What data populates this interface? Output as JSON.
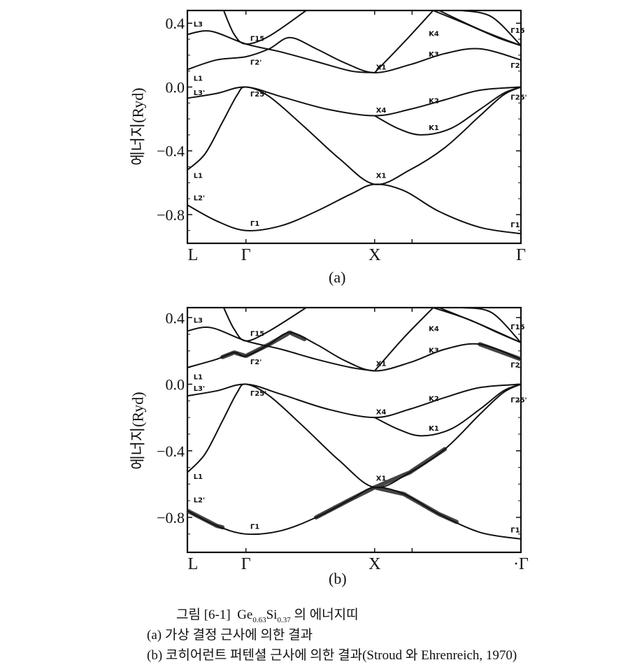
{
  "chart_data": [
    {
      "type": "line",
      "title": "(a)",
      "ylabel": "에너지(Ryd)",
      "ylim": [
        -0.98,
        0.48
      ],
      "xlim": [
        0,
        5.7
      ],
      "x_ticks": [
        {
          "k": 0,
          "label": "L"
        },
        {
          "k": 1,
          "label": "Γ"
        },
        {
          "k": 3.2,
          "label": "X"
        },
        {
          "k": 5.7,
          "label": "Γ"
        }
      ],
      "minor_x_ticks": [
        1,
        3.2,
        3.84
      ],
      "y_ticks": [
        {
          "v": 0.4,
          "label": "0.4"
        },
        {
          "v": 0.0,
          "label": "0.0"
        },
        {
          "v": -0.4,
          "label": "−0.4"
        },
        {
          "v": -0.8,
          "label": "−0.8"
        }
      ],
      "series": [
        {
          "name": "band-1",
          "k": [
            0,
            0.5,
            1,
            1.6,
            2.2,
            2.8,
            3.2,
            3.7,
            4.3,
            5.0,
            5.7
          ],
          "E": [
            -0.74,
            -0.84,
            -0.9,
            -0.87,
            -0.78,
            -0.67,
            -0.61,
            -0.65,
            -0.78,
            -0.88,
            -0.92
          ]
        },
        {
          "name": "band-2",
          "k": [
            0,
            0.3,
            0.6,
            0.85,
            1,
            1.4,
            2.0,
            2.6,
            3.2,
            3.8,
            4.4,
            5.0,
            5.4,
            5.7
          ],
          "E": [
            -0.52,
            -0.42,
            -0.22,
            -0.05,
            0.0,
            -0.06,
            -0.25,
            -0.45,
            -0.61,
            -0.52,
            -0.38,
            -0.18,
            -0.05,
            0.0
          ]
        },
        {
          "name": "band-3",
          "k": [
            0,
            0.5,
            1,
            1.6,
            2.4,
            3.2,
            3.8,
            4.4,
            5.0,
            5.7
          ],
          "E": [
            -0.07,
            -0.04,
            0.0,
            -0.06,
            -0.14,
            -0.18,
            -0.14,
            -0.08,
            -0.02,
            0.0
          ]
        },
        {
          "name": "band-3b",
          "k": [
            3.2,
            3.6,
            4.0,
            4.5,
            5.0,
            5.4,
            5.7
          ],
          "E": [
            -0.18,
            -0.26,
            -0.3,
            -0.26,
            -0.14,
            -0.04,
            0.0
          ]
        },
        {
          "name": "band-4",
          "k": [
            0,
            0.5,
            1,
            1.4,
            1.75,
            2.2,
            2.7,
            3.2,
            3.8,
            4.4,
            5.0,
            5.7
          ],
          "E": [
            0.11,
            0.17,
            0.19,
            0.24,
            0.31,
            0.24,
            0.15,
            0.09,
            0.14,
            0.21,
            0.24,
            0.17
          ]
        },
        {
          "name": "band-5",
          "k": [
            0,
            0.4,
            1,
            1.6,
            2.2,
            2.8,
            3.2
          ],
          "E": [
            0.33,
            0.35,
            0.27,
            0.22,
            0.16,
            0.1,
            0.09
          ]
        },
        {
          "name": "band-5b",
          "k": [
            3.2,
            3.7,
            4.2
          ],
          "E": [
            0.09,
            0.28,
            0.48
          ]
        },
        {
          "name": "band-6",
          "k": [
            0.62,
            0.8,
            1,
            1.4,
            2.03
          ],
          "E": [
            0.48,
            0.33,
            0.27,
            0.32,
            0.48
          ]
        },
        {
          "name": "band-7",
          "k": [
            4.2,
            4.8,
            5.3,
            5.7
          ],
          "E": [
            0.48,
            0.39,
            0.31,
            0.26
          ]
        },
        {
          "name": "band-8",
          "k": [
            4.3,
            5.0,
            5.7
          ],
          "E": [
            0.48,
            0.36,
            0.26
          ]
        },
        {
          "name": "band-9",
          "k": [
            4.7,
            5.2,
            5.7
          ],
          "E": [
            0.48,
            0.44,
            0.26
          ]
        }
      ],
      "broadened": [],
      "annotations": [
        {
          "text": "L3",
          "k": 0.08,
          "E": 0.38
        },
        {
          "text": "Γ15",
          "k": 1.05,
          "E": 0.29
        },
        {
          "text": "Γ2'",
          "k": 1.05,
          "E": 0.14
        },
        {
          "text": "L1",
          "k": 0.08,
          "E": 0.04
        },
        {
          "text": "L3'",
          "k": 0.08,
          "E": -0.05
        },
        {
          "text": "Γ25'",
          "k": 1.05,
          "E": -0.06
        },
        {
          "text": "L1",
          "k": 0.08,
          "E": -0.57
        },
        {
          "text": "L2'",
          "k": 0.08,
          "E": -0.71
        },
        {
          "text": "Γ1",
          "k": 1.05,
          "E": -0.87
        },
        {
          "text": "X1",
          "k": 3.2,
          "E": 0.11
        },
        {
          "text": "X4",
          "k": 3.2,
          "E": -0.16
        },
        {
          "text": "X1",
          "k": 3.2,
          "E": -0.57
        },
        {
          "text": "K4",
          "k": 4.1,
          "E": 0.32
        },
        {
          "text": "K3",
          "k": 4.1,
          "E": 0.19
        },
        {
          "text": "K2",
          "k": 4.1,
          "E": -0.1
        },
        {
          "text": "K1",
          "k": 4.1,
          "E": -0.27
        },
        {
          "text": "Γ15",
          "k": 5.5,
          "E": 0.34
        },
        {
          "text": "Γ2",
          "k": 5.5,
          "E": 0.12
        },
        {
          "text": "Γ25'",
          "k": 5.5,
          "E": -0.08
        },
        {
          "text": "Γ1",
          "k": 5.5,
          "E": -0.88
        }
      ]
    },
    {
      "type": "line",
      "title": "(b)",
      "ylabel": "에너지(Ryd)",
      "ylim": [
        -1.01,
        0.46
      ],
      "xlim": [
        0,
        5.7
      ],
      "x_ticks": [
        {
          "k": 0,
          "label": "L"
        },
        {
          "k": 1,
          "label": "Γ"
        },
        {
          "k": 3.2,
          "label": "X"
        },
        {
          "k": 5.7,
          "label": "·Γ"
        }
      ],
      "minor_x_ticks": [
        1,
        3.2,
        3.84
      ],
      "y_ticks": [
        {
          "v": 0.4,
          "label": "0.4"
        },
        {
          "v": 0.0,
          "label": "0.0"
        },
        {
          "v": -0.4,
          "label": "−0.4"
        },
        {
          "v": -0.8,
          "label": "−0.8"
        }
      ],
      "series": [
        {
          "name": "band-1",
          "k": [
            0,
            0.5,
            1,
            1.6,
            2.2,
            2.8,
            3.2,
            3.7,
            4.3,
            5.0,
            5.7
          ],
          "E": [
            -0.76,
            -0.85,
            -0.9,
            -0.88,
            -0.8,
            -0.69,
            -0.62,
            -0.66,
            -0.78,
            -0.89,
            -0.93
          ]
        },
        {
          "name": "band-2",
          "k": [
            0,
            0.3,
            0.6,
            0.85,
            1,
            1.4,
            2.0,
            2.6,
            3.2,
            3.8,
            4.4,
            5.0,
            5.4,
            5.7
          ],
          "E": [
            -0.53,
            -0.42,
            -0.22,
            -0.05,
            0.0,
            -0.07,
            -0.26,
            -0.46,
            -0.62,
            -0.53,
            -0.39,
            -0.18,
            -0.05,
            0.0
          ]
        },
        {
          "name": "band-3",
          "k": [
            0,
            0.5,
            1,
            1.6,
            2.4,
            3.2,
            3.8,
            4.4,
            5.0,
            5.7
          ],
          "E": [
            -0.07,
            -0.04,
            0.0,
            -0.06,
            -0.15,
            -0.2,
            -0.15,
            -0.08,
            -0.02,
            0.0
          ]
        },
        {
          "name": "band-3b",
          "k": [
            3.2,
            3.6,
            4.0,
            4.5,
            5.0,
            5.4,
            5.7
          ],
          "E": [
            -0.2,
            -0.27,
            -0.31,
            -0.27,
            -0.15,
            -0.04,
            0.0
          ]
        },
        {
          "name": "band-4",
          "k": [
            0,
            0.5,
            0.8,
            1,
            1.4,
            1.75,
            2.2,
            2.7,
            3.2,
            3.8,
            4.4,
            5.0,
            5.7
          ],
          "E": [
            0.1,
            0.15,
            0.19,
            0.17,
            0.24,
            0.31,
            0.24,
            0.14,
            0.08,
            0.13,
            0.21,
            0.24,
            0.15
          ]
        },
        {
          "name": "band-5",
          "k": [
            0,
            0.4,
            1,
            1.6,
            2.2,
            2.8,
            3.2
          ],
          "E": [
            0.32,
            0.34,
            0.26,
            0.21,
            0.15,
            0.1,
            0.08
          ]
        },
        {
          "name": "band-5b",
          "k": [
            3.2,
            3.7,
            4.2
          ],
          "E": [
            0.08,
            0.28,
            0.46
          ]
        },
        {
          "name": "band-6",
          "k": [
            0.62,
            0.8,
            1,
            1.4,
            2.03
          ],
          "E": [
            0.46,
            0.33,
            0.26,
            0.32,
            0.46
          ]
        },
        {
          "name": "band-7",
          "k": [
            4.2,
            4.8,
            5.3,
            5.7
          ],
          "E": [
            0.46,
            0.39,
            0.31,
            0.25
          ]
        },
        {
          "name": "band-8",
          "k": [
            4.3,
            5.0,
            5.7
          ],
          "E": [
            0.46,
            0.36,
            0.25
          ]
        },
        {
          "name": "band-9",
          "k": [
            4.7,
            5.2,
            5.7
          ],
          "E": [
            0.46,
            0.43,
            0.25
          ]
        }
      ],
      "broadened": [
        {
          "series": "band-4",
          "k": [
            0.6,
            2.0
          ]
        },
        {
          "series": "band-4",
          "k": [
            5.0,
            5.7
          ]
        },
        {
          "series": "band-1",
          "k": [
            0,
            0.6
          ]
        },
        {
          "series": "band-1",
          "k": [
            2.2,
            4.6
          ]
        },
        {
          "series": "band-2",
          "k": [
            3.2,
            4.4
          ]
        }
      ],
      "annotations": [
        {
          "text": "L3",
          "k": 0.08,
          "E": 0.37
        },
        {
          "text": "Γ15",
          "k": 1.05,
          "E": 0.29
        },
        {
          "text": "Γ2'",
          "k": 1.05,
          "E": 0.12
        },
        {
          "text": "L1",
          "k": 0.08,
          "E": 0.03
        },
        {
          "text": "L3'",
          "k": 0.08,
          "E": -0.04
        },
        {
          "text": "Γ25'",
          "k": 1.05,
          "E": -0.07
        },
        {
          "text": "L1",
          "k": 0.08,
          "E": -0.57
        },
        {
          "text": "L2'",
          "k": 0.08,
          "E": -0.71
        },
        {
          "text": "Γ1",
          "k": 1.05,
          "E": -0.87
        },
        {
          "text": "X1",
          "k": 3.2,
          "E": 0.11
        },
        {
          "text": "X4",
          "k": 3.2,
          "E": -0.18
        },
        {
          "text": "X1",
          "k": 3.2,
          "E": -0.58
        },
        {
          "text": "K4",
          "k": 4.1,
          "E": 0.32
        },
        {
          "text": "K3",
          "k": 4.1,
          "E": 0.19
        },
        {
          "text": "K2",
          "k": 4.1,
          "E": -0.1
        },
        {
          "text": "K1",
          "k": 4.1,
          "E": -0.28
        },
        {
          "text": "Γ15",
          "k": 5.5,
          "E": 0.33
        },
        {
          "text": "Γ2",
          "k": 5.5,
          "E": 0.1
        },
        {
          "text": "Γ25'",
          "k": 5.5,
          "E": -0.11
        },
        {
          "text": "Γ1",
          "k": 5.5,
          "E": -0.89
        }
      ]
    }
  ],
  "caption": {
    "figure_prefix": "그림 [6-1]",
    "el1": "Ge",
    "el1_sub": "0.63",
    "el2": "Si",
    "el2_sub": "0.37",
    "suffix": "의 에너지띠",
    "line_a": "(a) 가상 결정 근사에 의한 결과",
    "line_b": "(b) 코히어런트 퍼텐셜 근사에 의한 결과(Stroud 와 Ehrenreich, 1970)"
  },
  "colors": {
    "ink": "#111111",
    "broadened": "#444444"
  }
}
